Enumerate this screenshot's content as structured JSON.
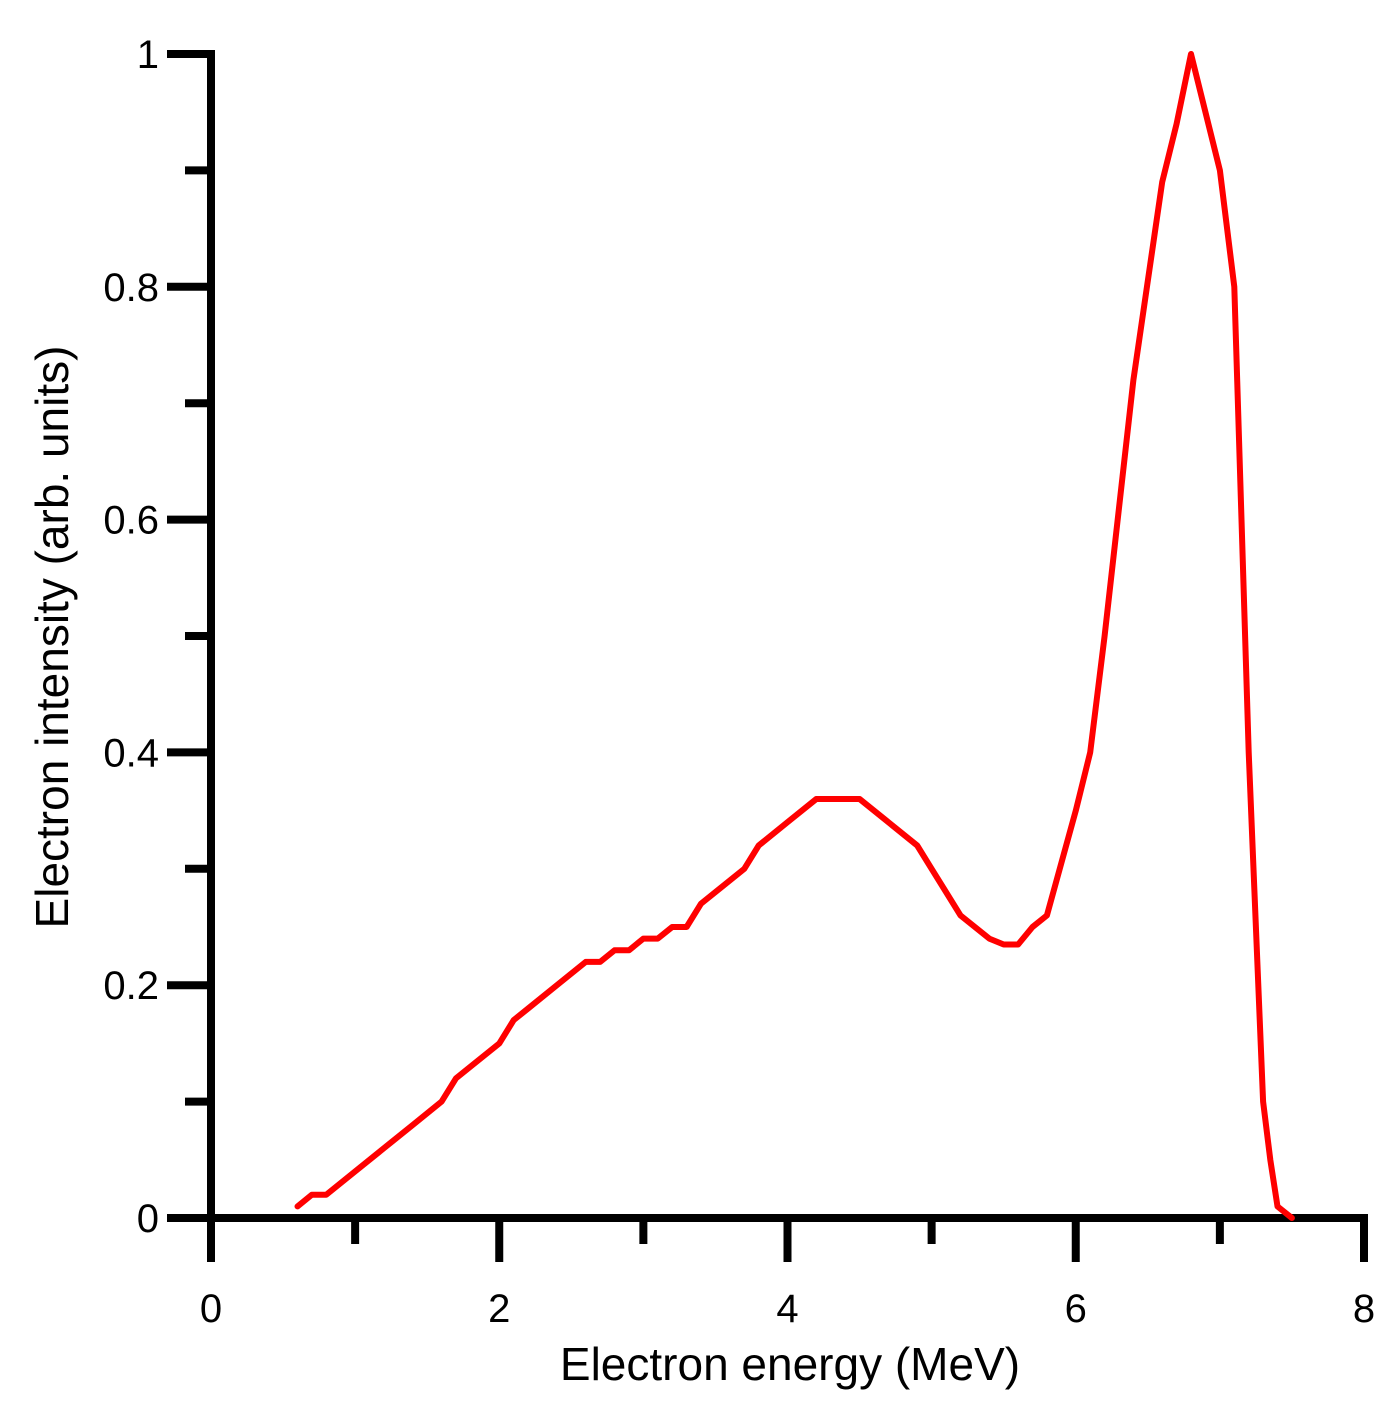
{
  "chart_data": {
    "type": "line",
    "xlabel": "Electron energy (MeV)",
    "ylabel": "Electron intensity (arb. units)",
    "xlim": [
      0,
      8
    ],
    "ylim": [
      0,
      1
    ],
    "x_ticks": [
      0,
      2,
      4,
      6,
      8
    ],
    "x_tick_labels": [
      "0",
      "2",
      "4",
      "6",
      "8"
    ],
    "x_minor_ticks": [
      1,
      3,
      5,
      7
    ],
    "y_ticks": [
      0,
      0.2,
      0.4,
      0.6,
      0.8,
      1
    ],
    "y_tick_labels": [
      "0",
      "0.2",
      "0.4",
      "0.6",
      "0.8",
      "1"
    ],
    "y_minor_ticks": [
      0.1,
      0.3,
      0.5,
      0.7,
      0.9
    ],
    "grid": false,
    "legend": "none",
    "series": [
      {
        "color": "#ff0000",
        "x": [
          0.6,
          0.7,
          0.8,
          0.9,
          1.0,
          1.2,
          1.4,
          1.6,
          1.7,
          1.8,
          2.0,
          2.1,
          2.2,
          2.4,
          2.6,
          2.7,
          2.8,
          2.9,
          3.0,
          3.1,
          3.2,
          3.3,
          3.4,
          3.7,
          3.8,
          4.0,
          4.2,
          4.5,
          4.9,
          5.0,
          5.2,
          5.4,
          5.5,
          5.6,
          5.7,
          5.8,
          6.0,
          6.1,
          6.2,
          6.4,
          6.6,
          6.7,
          6.8,
          7.0,
          7.1,
          7.15,
          7.2,
          7.3,
          7.35,
          7.4,
          7.5
        ],
        "y": [
          0.01,
          0.02,
          0.02,
          0.03,
          0.04,
          0.06,
          0.08,
          0.1,
          0.12,
          0.13,
          0.15,
          0.17,
          0.18,
          0.2,
          0.22,
          0.22,
          0.23,
          0.23,
          0.24,
          0.24,
          0.25,
          0.25,
          0.27,
          0.3,
          0.32,
          0.34,
          0.36,
          0.36,
          0.32,
          0.3,
          0.26,
          0.24,
          0.235,
          0.235,
          0.25,
          0.26,
          0.35,
          0.4,
          0.5,
          0.72,
          0.89,
          0.94,
          1.0,
          0.9,
          0.8,
          0.6,
          0.4,
          0.1,
          0.05,
          0.01,
          0.0
        ]
      }
    ]
  }
}
